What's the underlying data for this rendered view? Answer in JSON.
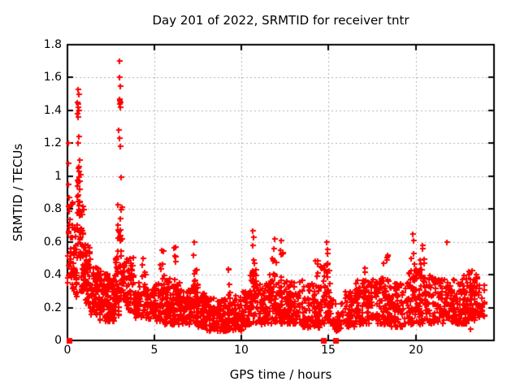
{
  "chart_data": {
    "type": "scatter",
    "title": "Day 201 of 2022, SRMTID for receiver tntr",
    "xlabel": "GPS time / hours",
    "ylabel": "SRMTID / TECUs",
    "xlim": [
      0,
      24.5
    ],
    "ylim": [
      0,
      1.8
    ],
    "xticks": [
      [
        0,
        "0"
      ],
      [
        5,
        "5"
      ],
      [
        10,
        "10"
      ],
      [
        15,
        "15"
      ],
      [
        20,
        "20"
      ]
    ],
    "yticks": [
      [
        0,
        "0"
      ],
      [
        0.2,
        "0.2"
      ],
      [
        0.4,
        "0.4"
      ],
      [
        0.6,
        "0.6"
      ],
      [
        0.8,
        "0.8"
      ],
      [
        1,
        "1"
      ],
      [
        1.2,
        "1.2"
      ],
      [
        1.4,
        "1.4"
      ],
      [
        1.6,
        "1.6"
      ],
      [
        1.8,
        "1.8"
      ]
    ],
    "grid": true,
    "legend": "none",
    "marker": "plus",
    "colors": {
      "points": "#ff0000",
      "grid": "#b4b4b4",
      "border": "#000000",
      "text": "#000000",
      "background": "#ffffff"
    },
    "seed": 201,
    "density_bins": [
      [
        0.0,
        0.3,
        30,
        0.33,
        0.8
      ],
      [
        0.02,
        0.3,
        6,
        0.8,
        1.0
      ],
      [
        0.3,
        0.55,
        32,
        0.25,
        0.7
      ],
      [
        0.55,
        0.75,
        20,
        0.45,
        1.05
      ],
      [
        0.55,
        0.78,
        12,
        0.5,
        0.95
      ],
      [
        0.75,
        1.0,
        36,
        0.3,
        0.85
      ],
      [
        1.0,
        1.3,
        42,
        0.22,
        0.62
      ],
      [
        1.3,
        1.8,
        60,
        0.15,
        0.5
      ],
      [
        1.8,
        2.3,
        65,
        0.12,
        0.42
      ],
      [
        2.3,
        2.7,
        55,
        0.12,
        0.38
      ],
      [
        2.7,
        3.0,
        42,
        0.15,
        0.55
      ],
      [
        2.85,
        3.12,
        14,
        0.6,
        1.02
      ],
      [
        3.0,
        3.3,
        30,
        0.25,
        0.6
      ],
      [
        3.3,
        3.8,
        52,
        0.18,
        0.52
      ],
      [
        3.8,
        4.5,
        62,
        0.14,
        0.35
      ],
      [
        4.25,
        4.5,
        6,
        0.35,
        0.5
      ],
      [
        4.5,
        5.0,
        52,
        0.13,
        0.32
      ],
      [
        5.0,
        5.5,
        52,
        0.12,
        0.35
      ],
      [
        5.3,
        5.55,
        6,
        0.35,
        0.55
      ],
      [
        5.5,
        6.0,
        56,
        0.1,
        0.38
      ],
      [
        6.0,
        6.5,
        56,
        0.1,
        0.35
      ],
      [
        6.1,
        6.3,
        5,
        0.35,
        0.57
      ],
      [
        6.5,
        7.0,
        55,
        0.1,
        0.32
      ],
      [
        7.0,
        7.5,
        56,
        0.1,
        0.35
      ],
      [
        7.2,
        7.45,
        6,
        0.35,
        0.58
      ],
      [
        7.5,
        8.0,
        55,
        0.08,
        0.3
      ],
      [
        8.0,
        9.0,
        95,
        0.06,
        0.26
      ],
      [
        9.0,
        10.0,
        95,
        0.06,
        0.27
      ],
      [
        9.1,
        9.35,
        5,
        0.27,
        0.47
      ],
      [
        10.0,
        10.5,
        50,
        0.08,
        0.3
      ],
      [
        10.5,
        11.0,
        52,
        0.1,
        0.42
      ],
      [
        10.55,
        10.85,
        8,
        0.4,
        0.55
      ],
      [
        11.0,
        11.5,
        50,
        0.1,
        0.35
      ],
      [
        11.5,
        12.0,
        50,
        0.1,
        0.4
      ],
      [
        11.75,
        12.0,
        6,
        0.4,
        0.55
      ],
      [
        12.0,
        12.5,
        52,
        0.1,
        0.37
      ],
      [
        12.2,
        12.4,
        5,
        0.37,
        0.55
      ],
      [
        12.5,
        13.5,
        95,
        0.1,
        0.37
      ],
      [
        13.5,
        14.5,
        92,
        0.08,
        0.36
      ],
      [
        14.2,
        14.45,
        5,
        0.35,
        0.5
      ],
      [
        14.5,
        15.2,
        60,
        0.1,
        0.45
      ],
      [
        14.75,
        15.05,
        6,
        0.45,
        0.58
      ],
      [
        15.2,
        15.8,
        35,
        0.05,
        0.25
      ],
      [
        15.8,
        16.5,
        58,
        0.08,
        0.3
      ],
      [
        16.5,
        17.5,
        90,
        0.1,
        0.37
      ],
      [
        17.0,
        17.35,
        5,
        0.35,
        0.5
      ],
      [
        17.5,
        18.5,
        90,
        0.1,
        0.38
      ],
      [
        18.15,
        18.45,
        5,
        0.38,
        0.53
      ],
      [
        18.5,
        19.5,
        85,
        0.08,
        0.35
      ],
      [
        19.5,
        20.0,
        50,
        0.1,
        0.42
      ],
      [
        19.7,
        19.95,
        5,
        0.42,
        0.56
      ],
      [
        20.0,
        20.6,
        55,
        0.1,
        0.45
      ],
      [
        20.25,
        20.55,
        6,
        0.45,
        0.58
      ],
      [
        20.6,
        21.2,
        52,
        0.1,
        0.4
      ],
      [
        21.2,
        21.9,
        55,
        0.1,
        0.38
      ],
      [
        21.9,
        22.5,
        55,
        0.1,
        0.37
      ],
      [
        22.5,
        23.0,
        55,
        0.1,
        0.4
      ],
      [
        23.0,
        23.55,
        65,
        0.12,
        0.43
      ],
      [
        23.55,
        23.95,
        25,
        0.14,
        0.34
      ]
    ],
    "outlier_points": [
      [
        0.03,
        1.2
      ],
      [
        0.05,
        1.08
      ],
      [
        0.03,
        0.95
      ],
      [
        0.6,
        1.53
      ],
      [
        0.63,
        1.5
      ],
      [
        0.58,
        1.45
      ],
      [
        0.62,
        1.44
      ],
      [
        0.6,
        1.42
      ],
      [
        0.65,
        1.4
      ],
      [
        0.57,
        1.38
      ],
      [
        0.61,
        1.36
      ],
      [
        0.67,
        1.24
      ],
      [
        0.6,
        1.2
      ],
      [
        0.71,
        1.1
      ],
      [
        0.66,
        1.06
      ],
      [
        0.7,
        0.97
      ],
      [
        3.0,
        1.7
      ],
      [
        2.98,
        1.6
      ],
      [
        3.02,
        1.55
      ],
      [
        2.97,
        1.47
      ],
      [
        3.0,
        1.46
      ],
      [
        3.03,
        1.45
      ],
      [
        2.99,
        1.44
      ],
      [
        3.05,
        1.42
      ],
      [
        2.96,
        1.28
      ],
      [
        3.0,
        1.23
      ],
      [
        3.04,
        1.18
      ],
      [
        5.4,
        0.55
      ],
      [
        6.2,
        0.57
      ],
      [
        7.3,
        0.6
      ],
      [
        10.66,
        0.67
      ],
      [
        10.7,
        0.63
      ],
      [
        10.63,
        0.58
      ],
      [
        11.88,
        0.62
      ],
      [
        11.84,
        0.56
      ],
      [
        12.25,
        0.61
      ],
      [
        14.9,
        0.6
      ],
      [
        19.85,
        0.65
      ],
      [
        19.9,
        0.61
      ],
      [
        20.4,
        0.58
      ],
      [
        21.8,
        0.6
      ],
      [
        23.15,
        0.07
      ]
    ],
    "zero_marker_xs": [
      0.1,
      14.72,
      15.38
    ]
  }
}
